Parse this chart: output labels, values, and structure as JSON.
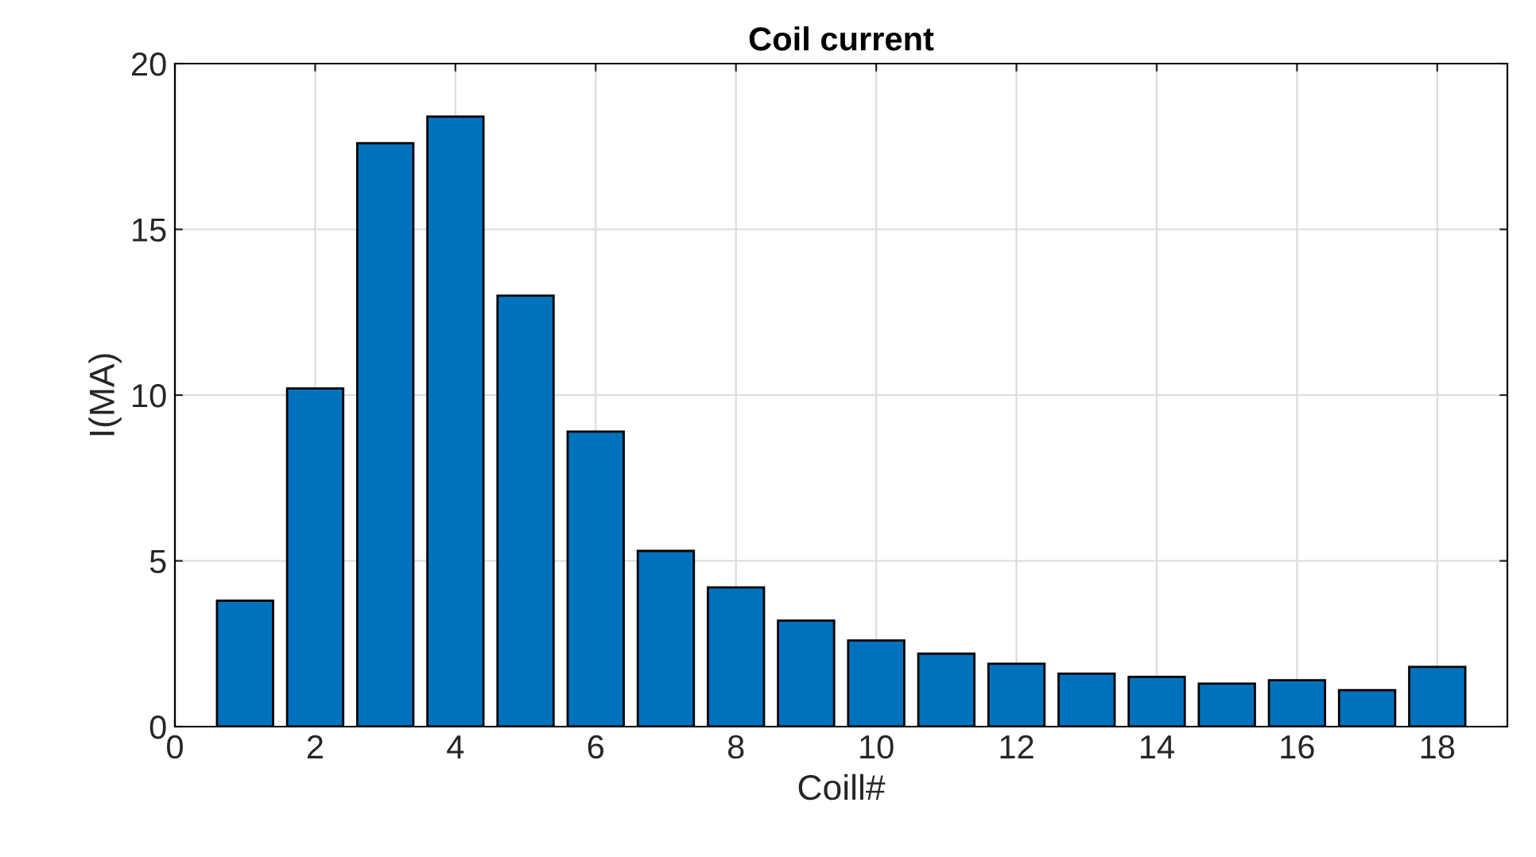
{
  "chart_data": {
    "type": "bar",
    "title": "Coil current",
    "xlabel": "Coill#",
    "ylabel": "I(MA)",
    "x": [
      1,
      2,
      3,
      4,
      5,
      6,
      7,
      8,
      9,
      10,
      11,
      12,
      13,
      14,
      15,
      16,
      17,
      18
    ],
    "values": [
      3.8,
      10.2,
      17.6,
      18.4,
      13.0,
      8.9,
      5.3,
      4.2,
      3.2,
      2.6,
      2.2,
      1.9,
      1.6,
      1.5,
      1.3,
      1.4,
      1.1,
      1.8
    ],
    "color": "#0072bd",
    "xlim": [
      0,
      19
    ],
    "xticks": [
      0,
      2,
      4,
      6,
      8,
      10,
      12,
      14,
      16,
      18
    ],
    "ylim": [
      0,
      20
    ],
    "yticks": [
      0,
      5,
      10,
      15,
      20
    ],
    "grid": true
  }
}
